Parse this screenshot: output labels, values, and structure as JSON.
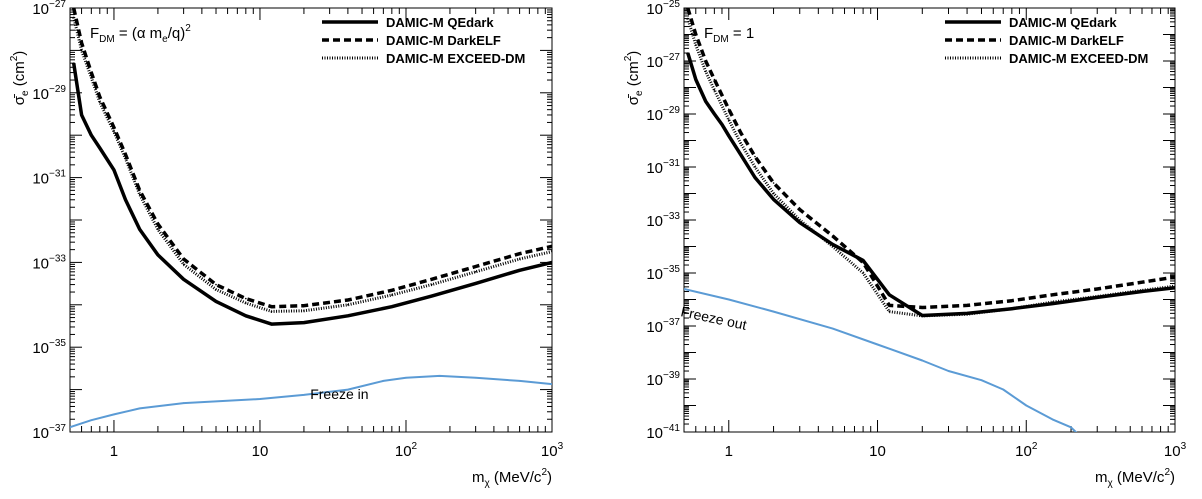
{
  "chart_data": [
    {
      "type": "line",
      "panel": "left",
      "scale": {
        "x": "log",
        "y": "log"
      },
      "xlim": [
        0.5,
        1000
      ],
      "ylim": [
        1e-37,
        1e-27
      ],
      "xlabel": "mχ (MeV/c²)",
      "ylabel": "σ̄e (cm²)",
      "annotation": "F_DM = (α m_e/q)²",
      "legend_position": "top-right",
      "x_ticks": [
        {
          "label": "1",
          "value": 1
        },
        {
          "label": "10",
          "value": 10
        },
        {
          "label": "10²",
          "value": 100
        },
        {
          "label": "10³",
          "value": 1000
        }
      ],
      "y_ticks": [
        {
          "label": "10⁻³⁷",
          "value": 1e-37
        },
        {
          "label": "10⁻³⁵",
          "value": 1e-35
        },
        {
          "label": "10⁻³³",
          "value": 1e-33
        },
        {
          "label": "10⁻³¹",
          "value": 1e-31
        },
        {
          "label": "10⁻²⁹",
          "value": 1e-29
        },
        {
          "label": "10⁻²⁷",
          "value": 1e-27
        }
      ],
      "series": [
        {
          "name": "DAMIC-M QEdark",
          "style": "solid",
          "color": "#000000",
          "x": [
            0.53,
            0.6,
            0.7,
            0.8,
            1.0,
            1.2,
            1.5,
            2,
            3,
            5,
            8,
            12,
            20,
            40,
            80,
            150,
            300,
            600,
            1000
          ],
          "y": [
            5e-29,
            3e-30,
            1e-30,
            5e-31,
            1.5e-31,
            3e-32,
            6e-33,
            1.5e-33,
            4e-34,
            1.2e-34,
            5.5e-35,
            3.5e-35,
            3.8e-35,
            5.5e-35,
            9e-35,
            1.6e-34,
            3.2e-34,
            6.5e-34,
            1e-33
          ]
        },
        {
          "name": "DAMIC-M DarkELF",
          "style": "dashed",
          "color": "#000000",
          "x": [
            0.53,
            0.6,
            0.7,
            0.8,
            1.0,
            1.2,
            1.5,
            2,
            3,
            5,
            8,
            12,
            20,
            40,
            80,
            150,
            300,
            600,
            1000
          ],
          "y": [
            1e-27,
            1.5e-28,
            3e-29,
            8e-30,
            1.5e-30,
            3.5e-31,
            5e-32,
            8e-33,
            1.2e-33,
            3e-34,
            1.4e-34,
            9e-35,
            9.5e-35,
            1.3e-34,
            2.2e-34,
            4e-34,
            8e-34,
            1.6e-33,
            2.4e-33
          ]
        },
        {
          "name": "DAMIC-M EXCEED-DM",
          "style": "dotted",
          "color": "#000000",
          "x": [
            0.53,
            0.6,
            0.7,
            0.8,
            1.0,
            1.2,
            1.5,
            2,
            3,
            5,
            8,
            12,
            20,
            40,
            80,
            150,
            300,
            600,
            1000
          ],
          "y": [
            6e-28,
            1e-28,
            2.3e-29,
            6e-30,
            1.2e-30,
            2.8e-31,
            4e-32,
            6e-33,
            9e-34,
            2.3e-34,
            1.1e-34,
            7e-35,
            7.2e-35,
            1e-34,
            1.7e-34,
            3e-34,
            6e-34,
            1.2e-33,
            1.8e-33
          ]
        },
        {
          "name": "Freeze in",
          "style": "solid",
          "color": "#5b9bd5",
          "label_on_chart": true,
          "x": [
            0.5,
            0.7,
            1.0,
            1.5,
            3,
            10,
            20,
            40,
            70,
            100,
            170,
            300,
            600,
            1000
          ],
          "y": [
            1.3e-37,
            1.9e-37,
            2.6e-37,
            3.6e-37,
            4.8e-37,
            6e-37,
            7.5e-37,
            1e-36,
            1.6e-36,
            1.9e-36,
            2.1e-36,
            1.9e-36,
            1.6e-36,
            1.35e-36
          ]
        }
      ]
    },
    {
      "type": "line",
      "panel": "right",
      "scale": {
        "x": "log",
        "y": "log"
      },
      "xlim": [
        0.5,
        1000
      ],
      "ylim": [
        1e-41,
        1e-25
      ],
      "xlabel": "mχ (MeV/c²)",
      "ylabel": "σ̄e (cm²)",
      "annotation": "F_DM = 1",
      "legend_position": "top-right",
      "x_ticks": [
        {
          "label": "1",
          "value": 1
        },
        {
          "label": "10",
          "value": 10
        },
        {
          "label": "10²",
          "value": 100
        },
        {
          "label": "10³",
          "value": 1000
        }
      ],
      "y_ticks": [
        {
          "label": "10⁻⁴¹",
          "value": 1e-41
        },
        {
          "label": "10⁻³⁹",
          "value": 1e-39
        },
        {
          "label": "10⁻³⁷",
          "value": 1e-37
        },
        {
          "label": "10⁻³⁵",
          "value": 1e-35
        },
        {
          "label": "10⁻³³",
          "value": 1e-33
        },
        {
          "label": "10⁻³¹",
          "value": 1e-31
        },
        {
          "label": "10⁻²⁹",
          "value": 1e-29
        },
        {
          "label": "10⁻²⁷",
          "value": 1e-27
        },
        {
          "label": "10⁻²⁵",
          "value": 1e-25
        }
      ],
      "series": [
        {
          "name": "DAMIC-M QEdark",
          "style": "solid",
          "color": "#000000",
          "x": [
            0.53,
            0.6,
            0.7,
            0.8,
            0.9,
            1.0,
            1.2,
            1.5,
            2,
            3,
            5,
            8,
            12,
            20,
            40,
            80,
            150,
            300,
            600,
            1000
          ],
          "y": [
            2e-27,
            2e-28,
            3e-29,
            1e-29,
            4e-30,
            1.5e-30,
            3e-31,
            4e-32,
            6e-33,
            8e-34,
            1.2e-34,
            3e-35,
            1.5e-36,
            2.5e-37,
            3e-37,
            4.5e-37,
            7e-37,
            1.2e-36,
            2e-36,
            2.8e-36
          ]
        },
        {
          "name": "DAMIC-M DarkELF",
          "style": "dashed",
          "color": "#000000",
          "x": [
            0.53,
            0.6,
            0.7,
            0.8,
            1.0,
            1.2,
            1.5,
            2,
            3,
            5,
            8,
            12,
            20,
            40,
            80,
            150,
            300,
            600,
            1000
          ],
          "y": [
            1e-25,
            1e-26,
            1e-27,
            2e-28,
            1.5e-29,
            2e-30,
            2.5e-31,
            2.5e-32,
            2.5e-33,
            2.5e-34,
            2.5e-35,
            6e-37,
            5e-37,
            6e-37,
            9e-37,
            1.5e-36,
            2.5e-36,
            4.5e-36,
            7e-36
          ]
        },
        {
          "name": "DAMIC-M EXCEED-DM",
          "style": "dotted",
          "color": "#000000",
          "x": [
            0.53,
            0.6,
            0.7,
            0.8,
            1.0,
            1.2,
            1.5,
            2,
            3,
            5,
            8,
            12,
            20,
            40,
            80,
            150,
            300,
            600,
            1000
          ],
          "y": [
            4e-26,
            4e-27,
            4e-28,
            8e-29,
            6e-30,
            8e-31,
            1e-31,
            1e-32,
            1e-33,
            1e-34,
            1e-35,
            3.5e-37,
            2.4e-37,
            2.8e-37,
            4.5e-37,
            8e-37,
            1.3e-36,
            2.2e-36,
            3.2e-36
          ]
        },
        {
          "name": "Freeze out",
          "style": "solid",
          "color": "#5b9bd5",
          "label_on_chart": true,
          "x": [
            0.5,
            1.0,
            2,
            5,
            10,
            20,
            30,
            50,
            70,
            100,
            150,
            200,
            230,
            260
          ],
          "y": [
            2.5e-36,
            1e-36,
            3.5e-37,
            8e-38,
            2e-38,
            5e-39,
            2e-39,
            9e-40,
            4e-40,
            1e-40,
            3e-41,
            1.5e-41,
            7e-42,
            1e-42
          ]
        }
      ]
    }
  ]
}
